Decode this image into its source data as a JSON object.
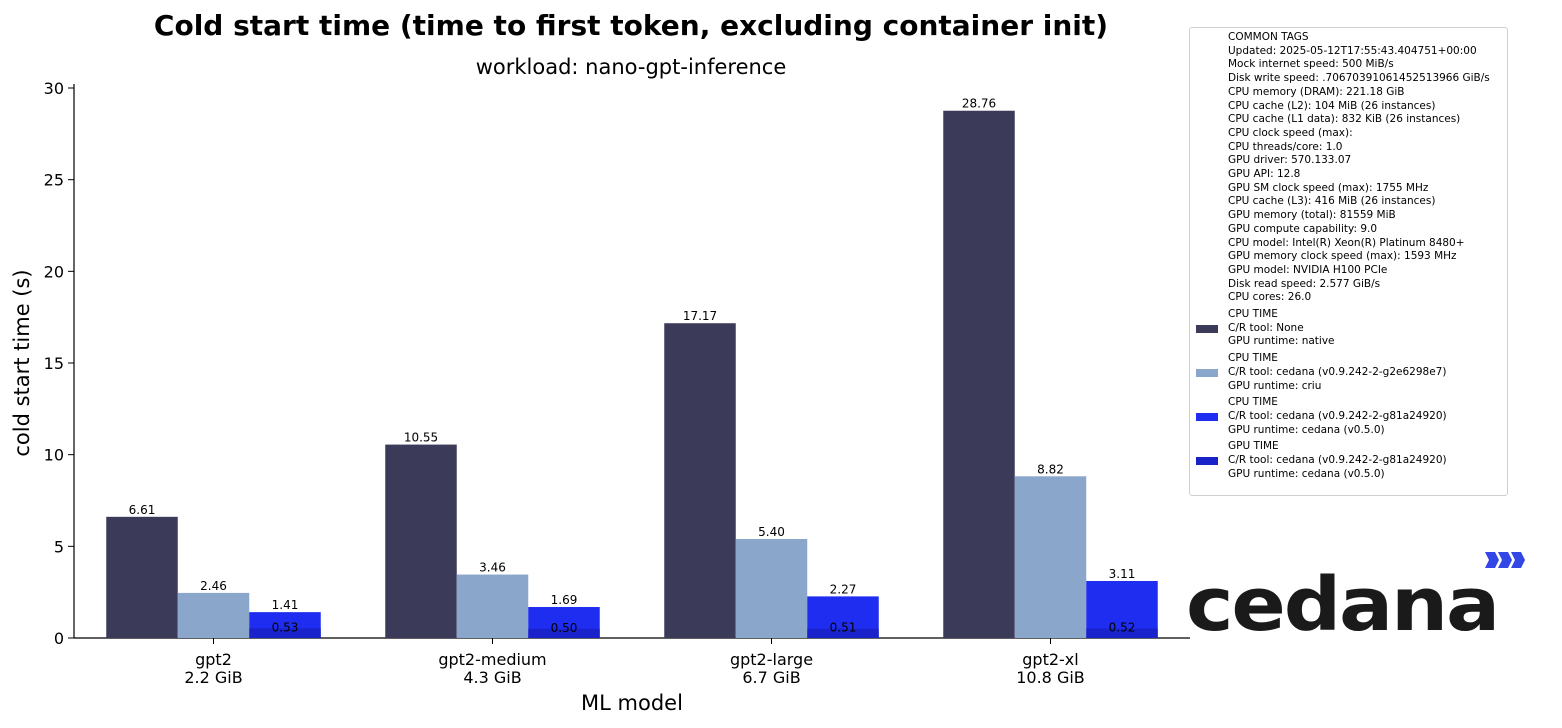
{
  "chart_data": {
    "type": "bar",
    "title": "Cold start time (time to first token, excluding container init)",
    "subtitle": "workload: nano-gpt-inference",
    "xlabel": "ML model",
    "ylabel": "cold start time (s)",
    "ylim": [
      0,
      30
    ],
    "yticks": [
      "0",
      "5",
      "10",
      "15",
      "20",
      "25",
      "30"
    ],
    "categories": [
      {
        "name": "gpt2",
        "size": "2.2 GiB"
      },
      {
        "name": "gpt2-medium",
        "size": "4.3 GiB"
      },
      {
        "name": "gpt2-large",
        "size": "6.7 GiB"
      },
      {
        "name": "gpt2-xl",
        "size": "10.8 GiB"
      }
    ],
    "series": [
      {
        "name": "CPU TIME | C/R tool: None | GPU runtime: native",
        "color": "#3b3a59",
        "values": [
          6.61,
          10.55,
          17.17,
          28.76
        ],
        "labels": [
          "6.61",
          "10.55",
          "17.17",
          "28.76"
        ]
      },
      {
        "name": "CPU TIME | C/R tool: cedana (v0.9.242-2-g2e6298e7) | GPU runtime: criu",
        "color": "#8ba6cb",
        "values": [
          2.46,
          3.46,
          5.4,
          8.82
        ],
        "labels": [
          "2.46",
          "3.46",
          "5.40",
          "8.82"
        ]
      },
      {
        "name": "CPU TIME | C/R tool: cedana (v0.9.242-2-g81a24920) | GPU runtime: cedana (v0.5.0)",
        "color": "#1f2df0",
        "values": [
          1.41,
          1.69,
          2.27,
          3.11
        ],
        "labels": [
          "1.41",
          "1.69",
          "2.27",
          "3.11"
        ]
      },
      {
        "name": "GPU TIME | C/R tool: cedana (v0.9.242-2-g81a24920) | GPU runtime: cedana (v0.5.0)",
        "color": "#1922c6",
        "values": [
          0.53,
          0.5,
          0.51,
          0.52
        ],
        "labels": [
          "0.53",
          "0.50",
          "0.51",
          "0.52"
        ],
        "overlay_on_series": 2
      }
    ],
    "legend_placement": "right"
  },
  "legend": {
    "common_header": "COMMON TAGS",
    "common_tags": [
      "Updated: 2025-05-12T17:55:43.404751+00:00",
      "Mock internet speed: 500 MiB/s",
      "Disk write speed: .70670391061452513966 GiB/s",
      "CPU memory (DRAM): 221.18 GiB",
      "CPU cache (L2): 104 MiB (26 instances)",
      "CPU cache (L1 data): 832 KiB (26 instances)",
      "CPU clock speed (max):",
      "CPU threads/core: 1.0",
      "GPU driver: 570.133.07",
      "GPU API: 12.8",
      "GPU SM clock speed (max): 1755 MHz",
      "CPU cache (L3): 416 MiB (26 instances)",
      "GPU memory (total): 81559 MiB",
      "GPU compute capability: 9.0",
      "CPU model: Intel(R) Xeon(R) Platinum 8480+",
      "GPU memory clock speed (max): 1593 MHz",
      "GPU model: NVIDIA H100 PCIe",
      "Disk read speed: 2.577 GiB/s",
      "CPU cores: 26.0"
    ],
    "entries": [
      {
        "lines": [
          "CPU TIME",
          "C/R tool: None",
          "GPU runtime: native"
        ],
        "color": "#3b3a59"
      },
      {
        "lines": [
          "CPU TIME",
          "C/R tool: cedana (v0.9.242-2-g2e6298e7)",
          "GPU runtime: criu"
        ],
        "color": "#8ba6cb"
      },
      {
        "lines": [
          "CPU TIME",
          "C/R tool: cedana (v0.9.242-2-g81a24920)",
          "GPU runtime: cedana (v0.5.0)"
        ],
        "color": "#1f2df0"
      },
      {
        "lines": [
          "GPU TIME",
          "C/R tool: cedana (v0.9.242-2-g81a24920)",
          "GPU runtime: cedana (v0.5.0)"
        ],
        "color": "#1922c6"
      }
    ]
  },
  "logo": {
    "text": "cedana",
    "text_color": "#1a1a1a",
    "accent_color": "#3346e6"
  }
}
